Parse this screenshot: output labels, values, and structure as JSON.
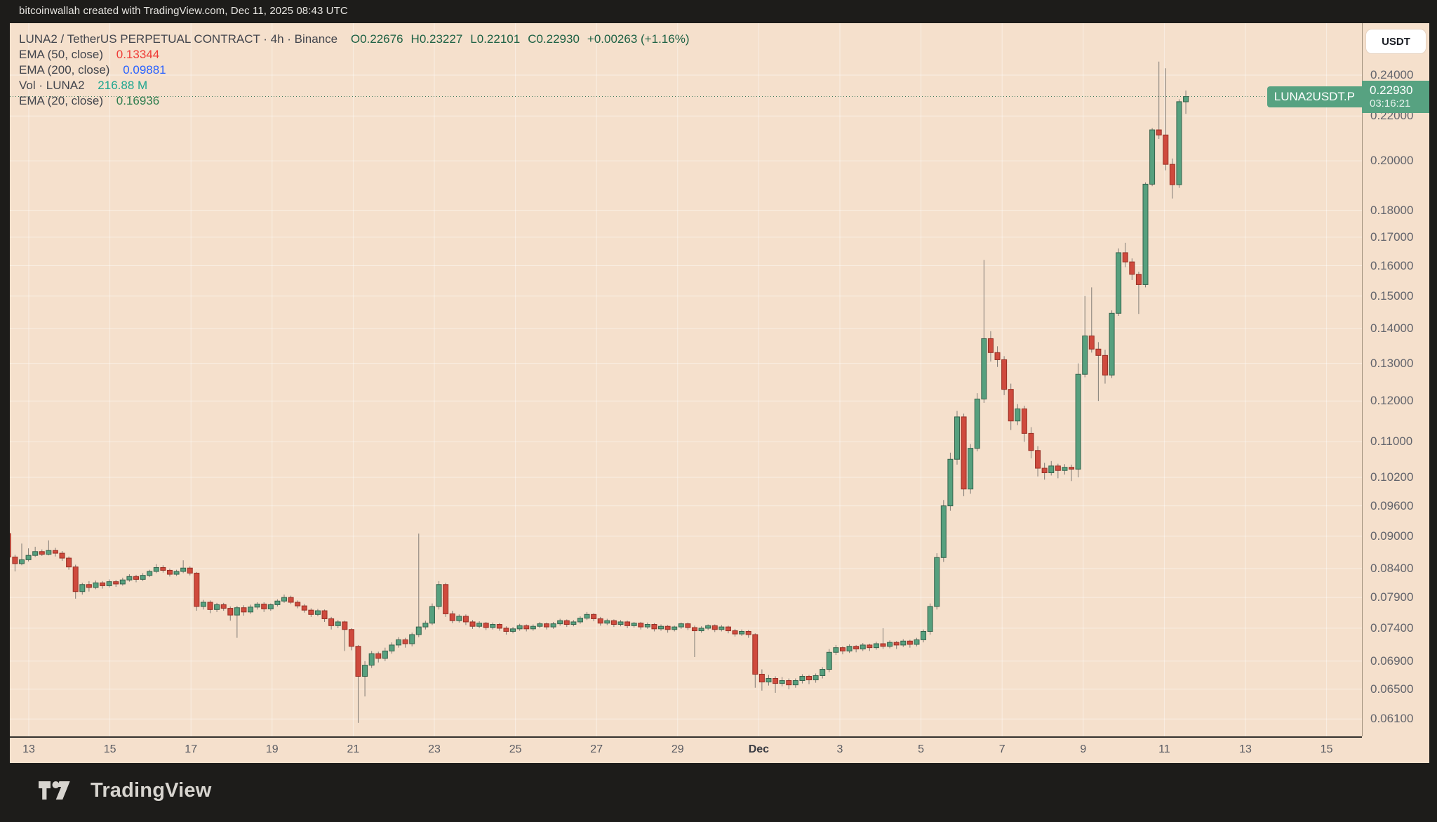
{
  "attribution": "bitcoinwallah created with TradingView.com, Dec 11, 2025 08:43 UTC",
  "brand": {
    "name": "TradingView"
  },
  "currency_button": "USDT",
  "legend": {
    "title": "LUNA2 / TetherUS PERPETUAL CONTRACT · 4h · Binance",
    "ohlc": {
      "open": "O0.22676",
      "high": "H0.23227",
      "low": "L0.22101",
      "close": "C0.22930",
      "change": "+0.00263 (+1.16%)"
    },
    "indicators": [
      {
        "label": "EMA (50, close)",
        "value": "0.13344",
        "color": "#ef3b36"
      },
      {
        "label": "EMA (200, close)",
        "value": "0.09881",
        "color": "#2962ff"
      },
      {
        "label": "Vol · LUNA2",
        "value": "216.88 M",
        "color": "#1ea58f"
      },
      {
        "label": "EMA (20, close)",
        "value": "0.16936",
        "color": "#2e7d4e"
      }
    ]
  },
  "price_badge": {
    "symbol": "LUNA2USDT.P",
    "price": "0.22930",
    "countdown": "03:16:21",
    "color": "#57a281"
  },
  "price_axis": {
    "ticks": [
      {
        "label": "0.24000",
        "value": 0.24
      },
      {
        "label": "0.22000",
        "value": 0.22
      },
      {
        "label": "0.20000",
        "value": 0.2
      },
      {
        "label": "0.18000",
        "value": 0.18
      },
      {
        "label": "0.17000",
        "value": 0.17
      },
      {
        "label": "0.16000",
        "value": 0.16
      },
      {
        "label": "0.15000",
        "value": 0.15
      },
      {
        "label": "0.14000",
        "value": 0.14
      },
      {
        "label": "0.13000",
        "value": 0.13
      },
      {
        "label": "0.12000",
        "value": 0.12
      },
      {
        "label": "0.11000",
        "value": 0.11
      },
      {
        "label": "0.10200",
        "value": 0.102
      },
      {
        "label": "0.09600",
        "value": 0.096
      },
      {
        "label": "0.09000",
        "value": 0.09
      },
      {
        "label": "0.08400",
        "value": 0.084
      },
      {
        "label": "0.07900",
        "value": 0.079
      },
      {
        "label": "0.07400",
        "value": 0.074
      },
      {
        "label": "0.06900",
        "value": 0.069
      },
      {
        "label": "0.06500",
        "value": 0.065
      },
      {
        "label": "0.06100",
        "value": 0.061
      }
    ]
  },
  "time_axis": {
    "ticks": [
      {
        "label": "13",
        "day": 0,
        "bold": false
      },
      {
        "label": "15",
        "day": 2,
        "bold": false
      },
      {
        "label": "17",
        "day": 4,
        "bold": false
      },
      {
        "label": "19",
        "day": 6,
        "bold": false
      },
      {
        "label": "21",
        "day": 8,
        "bold": false
      },
      {
        "label": "23",
        "day": 10,
        "bold": false
      },
      {
        "label": "25",
        "day": 12,
        "bold": false
      },
      {
        "label": "27",
        "day": 14,
        "bold": false
      },
      {
        "label": "29",
        "day": 16,
        "bold": false
      },
      {
        "label": "Dec",
        "day": 18,
        "bold": true
      },
      {
        "label": "3",
        "day": 20,
        "bold": false
      },
      {
        "label": "5",
        "day": 22,
        "bold": false
      },
      {
        "label": "7",
        "day": 24,
        "bold": false
      },
      {
        "label": "9",
        "day": 26,
        "bold": false
      },
      {
        "label": "11",
        "day": 28,
        "bold": false
      },
      {
        "label": "13",
        "day": 30,
        "bold": false
      },
      {
        "label": "15",
        "day": 32,
        "bold": false
      }
    ]
  },
  "chart_data": {
    "type": "candlestick",
    "title": "LUNA2 / TetherUS PERPETUAL CONTRACT",
    "exchange": "Binance",
    "interval": "4h",
    "scale": "logarithmic",
    "grid": true,
    "x_range": [
      "Nov 12 12:00",
      "Dec 11 08:00 UTC"
    ],
    "ylim": [
      0.0595,
      0.248
    ],
    "current": {
      "open": 0.22676,
      "high": 0.23227,
      "low": 0.22101,
      "close": 0.2293,
      "change": 0.00263,
      "change_pct": 1.16,
      "countdown": "03:16:21"
    },
    "indicators": {
      "ema20": 0.16936,
      "ema50": 0.13344,
      "ema200": 0.09881,
      "volume": "216.88 M"
    },
    "colors": {
      "up": "#56a07e",
      "up_border": "#35634c",
      "down": "#cf4a3d",
      "down_border": "#992f24",
      "wick": "#807b75"
    },
    "candles": [
      [
        0.0905,
        0.0907,
        0.0856,
        0.0861
      ],
      [
        0.0861,
        0.0865,
        0.0835,
        0.0849
      ],
      [
        0.0849,
        0.0886,
        0.0846,
        0.0856
      ],
      [
        0.0856,
        0.0877,
        0.0853,
        0.0864
      ],
      [
        0.0864,
        0.088,
        0.0861,
        0.0871
      ],
      [
        0.0871,
        0.0875,
        0.0863,
        0.0866
      ],
      [
        0.0866,
        0.0892,
        0.0864,
        0.0873
      ],
      [
        0.0873,
        0.0878,
        0.0862,
        0.0868
      ],
      [
        0.0868,
        0.0872,
        0.0854,
        0.0859
      ],
      [
        0.0859,
        0.0862,
        0.0838,
        0.0843
      ],
      [
        0.0843,
        0.0847,
        0.0788,
        0.08
      ],
      [
        0.08,
        0.0815,
        0.0795,
        0.0812
      ],
      [
        0.0812,
        0.0818,
        0.08,
        0.0807
      ],
      [
        0.0807,
        0.0819,
        0.0804,
        0.0815
      ],
      [
        0.0815,
        0.0818,
        0.0805,
        0.081
      ],
      [
        0.081,
        0.0821,
        0.0807,
        0.0817
      ],
      [
        0.0817,
        0.082,
        0.0808,
        0.0813
      ],
      [
        0.0813,
        0.0824,
        0.081,
        0.082
      ],
      [
        0.082,
        0.083,
        0.0817,
        0.0826
      ],
      [
        0.0826,
        0.0829,
        0.0816,
        0.0821
      ],
      [
        0.0821,
        0.0832,
        0.0818,
        0.0828
      ],
      [
        0.0828,
        0.0838,
        0.0825,
        0.0835
      ],
      [
        0.0835,
        0.0848,
        0.0832,
        0.0842
      ],
      [
        0.0842,
        0.0846,
        0.0833,
        0.0837
      ],
      [
        0.0837,
        0.084,
        0.0826,
        0.083
      ],
      [
        0.083,
        0.0838,
        0.0827,
        0.0835
      ],
      [
        0.0835,
        0.0855,
        0.0832,
        0.0841
      ],
      [
        0.0841,
        0.0844,
        0.0828,
        0.0832
      ],
      [
        0.0832,
        0.0834,
        0.0768,
        0.0775
      ],
      [
        0.0775,
        0.0786,
        0.077,
        0.0782
      ],
      [
        0.0782,
        0.0785,
        0.0764,
        0.077
      ],
      [
        0.077,
        0.0781,
        0.0766,
        0.0778
      ],
      [
        0.0778,
        0.0781,
        0.0768,
        0.0772
      ],
      [
        0.0772,
        0.0775,
        0.0752,
        0.0761
      ],
      [
        0.0761,
        0.0776,
        0.0725,
        0.0773
      ],
      [
        0.0773,
        0.0777,
        0.076,
        0.0766
      ],
      [
        0.0766,
        0.0778,
        0.0763,
        0.0774
      ],
      [
        0.0774,
        0.0782,
        0.077,
        0.0779
      ],
      [
        0.0779,
        0.0782,
        0.0766,
        0.0771
      ],
      [
        0.0771,
        0.078,
        0.0768,
        0.0778
      ],
      [
        0.0778,
        0.0787,
        0.0775,
        0.0784
      ],
      [
        0.0784,
        0.0795,
        0.0781,
        0.079
      ],
      [
        0.079,
        0.0793,
        0.0779,
        0.0782
      ],
      [
        0.0782,
        0.0785,
        0.0772,
        0.0776
      ],
      [
        0.0776,
        0.0779,
        0.0765,
        0.0769
      ],
      [
        0.0769,
        0.0772,
        0.0758,
        0.0762
      ],
      [
        0.0762,
        0.0771,
        0.0759,
        0.0768
      ],
      [
        0.0768,
        0.077,
        0.075,
        0.0755
      ],
      [
        0.0755,
        0.0758,
        0.0738,
        0.0744
      ],
      [
        0.0744,
        0.0753,
        0.074,
        0.075
      ],
      [
        0.075,
        0.0752,
        0.0705,
        0.0738
      ],
      [
        0.0738,
        0.074,
        0.0706,
        0.0712
      ],
      [
        0.0712,
        0.0714,
        0.0605,
        0.0668
      ],
      [
        0.0668,
        0.069,
        0.064,
        0.0684
      ],
      [
        0.0684,
        0.0705,
        0.068,
        0.0701
      ],
      [
        0.0701,
        0.0704,
        0.0688,
        0.0694
      ],
      [
        0.0694,
        0.071,
        0.069,
        0.0705
      ],
      [
        0.0705,
        0.0718,
        0.0701,
        0.0714
      ],
      [
        0.0714,
        0.0726,
        0.071,
        0.0722
      ],
      [
        0.0722,
        0.0725,
        0.071,
        0.0716
      ],
      [
        0.0716,
        0.0733,
        0.0712,
        0.073
      ],
      [
        0.073,
        0.0905,
        0.0726,
        0.0742
      ],
      [
        0.0742,
        0.0752,
        0.0738,
        0.0748
      ],
      [
        0.0748,
        0.078,
        0.0745,
        0.0775
      ],
      [
        0.0775,
        0.0818,
        0.077,
        0.0812
      ],
      [
        0.0812,
        0.0815,
        0.0758,
        0.0763
      ],
      [
        0.0763,
        0.0768,
        0.0748,
        0.0752
      ],
      [
        0.0752,
        0.0762,
        0.0749,
        0.0759
      ],
      [
        0.0759,
        0.0762,
        0.0745,
        0.075
      ],
      [
        0.075,
        0.0753,
        0.0739,
        0.0743
      ],
      [
        0.0743,
        0.0751,
        0.074,
        0.0748
      ],
      [
        0.0748,
        0.075,
        0.0737,
        0.0741
      ],
      [
        0.0741,
        0.0749,
        0.0738,
        0.0746
      ],
      [
        0.0746,
        0.0748,
        0.0736,
        0.074
      ],
      [
        0.074,
        0.0743,
        0.073,
        0.0735
      ],
      [
        0.0735,
        0.0742,
        0.0732,
        0.0739
      ],
      [
        0.0739,
        0.0747,
        0.0736,
        0.0744
      ],
      [
        0.0744,
        0.0746,
        0.0735,
        0.0739
      ],
      [
        0.0739,
        0.0746,
        0.0736,
        0.0743
      ],
      [
        0.0743,
        0.075,
        0.074,
        0.0747
      ],
      [
        0.0747,
        0.0749,
        0.0738,
        0.0742
      ],
      [
        0.0742,
        0.075,
        0.0739,
        0.0747
      ],
      [
        0.0747,
        0.0755,
        0.0744,
        0.0752
      ],
      [
        0.0752,
        0.0754,
        0.0742,
        0.0746
      ],
      [
        0.0746,
        0.0753,
        0.0743,
        0.075
      ],
      [
        0.075,
        0.0759,
        0.0747,
        0.0756
      ],
      [
        0.0756,
        0.0766,
        0.0753,
        0.0762
      ],
      [
        0.0762,
        0.0764,
        0.0751,
        0.0755
      ],
      [
        0.0755,
        0.0758,
        0.0744,
        0.0748
      ],
      [
        0.0748,
        0.0755,
        0.0745,
        0.0752
      ],
      [
        0.0752,
        0.0754,
        0.0742,
        0.0746
      ],
      [
        0.0746,
        0.0753,
        0.0743,
        0.075
      ],
      [
        0.075,
        0.0752,
        0.074,
        0.0744
      ],
      [
        0.0744,
        0.075,
        0.0741,
        0.0748
      ],
      [
        0.0748,
        0.075,
        0.0738,
        0.0742
      ],
      [
        0.0742,
        0.0749,
        0.0739,
        0.0746
      ],
      [
        0.0746,
        0.0748,
        0.0735,
        0.0739
      ],
      [
        0.0739,
        0.0746,
        0.0736,
        0.0743
      ],
      [
        0.0743,
        0.0745,
        0.0733,
        0.0738
      ],
      [
        0.0738,
        0.0744,
        0.0735,
        0.0742
      ],
      [
        0.0742,
        0.0749,
        0.0739,
        0.0747
      ],
      [
        0.0747,
        0.0749,
        0.0737,
        0.0741
      ],
      [
        0.0741,
        0.0744,
        0.0696,
        0.0736
      ],
      [
        0.0736,
        0.0743,
        0.0733,
        0.074
      ],
      [
        0.074,
        0.0746,
        0.0737,
        0.0744
      ],
      [
        0.0744,
        0.0746,
        0.0734,
        0.0738
      ],
      [
        0.0738,
        0.0745,
        0.0735,
        0.0742
      ],
      [
        0.0742,
        0.0744,
        0.0732,
        0.0736
      ],
      [
        0.0736,
        0.0739,
        0.0727,
        0.0731
      ],
      [
        0.0731,
        0.0738,
        0.0728,
        0.0735
      ],
      [
        0.0735,
        0.0737,
        0.0725,
        0.073
      ],
      [
        0.073,
        0.0732,
        0.0652,
        0.0671
      ],
      [
        0.0671,
        0.0678,
        0.0648,
        0.066
      ],
      [
        0.066,
        0.067,
        0.0655,
        0.0665
      ],
      [
        0.0665,
        0.0668,
        0.0645,
        0.0658
      ],
      [
        0.0658,
        0.0667,
        0.0654,
        0.0662
      ],
      [
        0.0662,
        0.0665,
        0.065,
        0.0656
      ],
      [
        0.0656,
        0.0665,
        0.0652,
        0.0662
      ],
      [
        0.0662,
        0.0671,
        0.0658,
        0.0668
      ],
      [
        0.0668,
        0.067,
        0.0657,
        0.0663
      ],
      [
        0.0663,
        0.0672,
        0.0659,
        0.0669
      ],
      [
        0.0669,
        0.0681,
        0.0665,
        0.0678
      ],
      [
        0.0678,
        0.0708,
        0.0674,
        0.0703
      ],
      [
        0.0703,
        0.0714,
        0.0699,
        0.071
      ],
      [
        0.071,
        0.0712,
        0.07,
        0.0705
      ],
      [
        0.0705,
        0.0715,
        0.0702,
        0.0712
      ],
      [
        0.0712,
        0.0714,
        0.0703,
        0.0708
      ],
      [
        0.0708,
        0.0717,
        0.0705,
        0.0714
      ],
      [
        0.0714,
        0.0716,
        0.0705,
        0.071
      ],
      [
        0.071,
        0.0719,
        0.0707,
        0.0716
      ],
      [
        0.0716,
        0.074,
        0.0708,
        0.0712
      ],
      [
        0.0712,
        0.0721,
        0.0709,
        0.0718
      ],
      [
        0.0718,
        0.072,
        0.0708,
        0.0714
      ],
      [
        0.0714,
        0.0723,
        0.0711,
        0.072
      ],
      [
        0.072,
        0.0722,
        0.071,
        0.0715
      ],
      [
        0.0715,
        0.0725,
        0.0712,
        0.0722
      ],
      [
        0.0722,
        0.0738,
        0.0718,
        0.0735
      ],
      [
        0.0735,
        0.078,
        0.073,
        0.0775
      ],
      [
        0.0775,
        0.0868,
        0.077,
        0.086
      ],
      [
        0.086,
        0.0972,
        0.0852,
        0.096
      ],
      [
        0.096,
        0.1075,
        0.095,
        0.106
      ],
      [
        0.106,
        0.1175,
        0.1048,
        0.116
      ],
      [
        0.116,
        0.1168,
        0.098,
        0.0995
      ],
      [
        0.0995,
        0.1095,
        0.0985,
        0.1085
      ],
      [
        0.1085,
        0.122,
        0.1078,
        0.1205
      ],
      [
        0.1205,
        0.162,
        0.1195,
        0.137
      ],
      [
        0.137,
        0.1392,
        0.1305,
        0.133
      ],
      [
        0.133,
        0.1348,
        0.129,
        0.131
      ],
      [
        0.131,
        0.132,
        0.1215,
        0.123
      ],
      [
        0.123,
        0.1245,
        0.1128,
        0.115
      ],
      [
        0.115,
        0.1192,
        0.114,
        0.118
      ],
      [
        0.118,
        0.1188,
        0.11,
        0.112
      ],
      [
        0.112,
        0.1135,
        0.1062,
        0.108
      ],
      [
        0.108,
        0.109,
        0.1022,
        0.104
      ],
      [
        0.104,
        0.1052,
        0.1015,
        0.103
      ],
      [
        0.103,
        0.1056,
        0.1024,
        0.1045
      ],
      [
        0.1045,
        0.105,
        0.1018,
        0.1035
      ],
      [
        0.1035,
        0.1049,
        0.1026,
        0.1042
      ],
      [
        0.1042,
        0.1048,
        0.1012,
        0.1038
      ],
      [
        0.1038,
        0.13,
        0.102,
        0.127
      ],
      [
        0.127,
        0.15,
        0.1262,
        0.1378
      ],
      [
        0.1378,
        0.1528,
        0.133,
        0.134
      ],
      [
        0.134,
        0.136,
        0.12,
        0.1322
      ],
      [
        0.1322,
        0.1338,
        0.1245,
        0.1268
      ],
      [
        0.1268,
        0.1455,
        0.126,
        0.1446
      ],
      [
        0.1446,
        0.166,
        0.1438,
        0.1645
      ],
      [
        0.1645,
        0.168,
        0.1595,
        0.1613
      ],
      [
        0.1613,
        0.1625,
        0.1552,
        0.1571
      ],
      [
        0.1571,
        0.158,
        0.1444,
        0.1537
      ],
      [
        0.1537,
        0.191,
        0.1528,
        0.1903
      ],
      [
        0.1903,
        0.2145,
        0.1895,
        0.2136
      ],
      [
        0.2136,
        0.247,
        0.2095,
        0.2113
      ],
      [
        0.2113,
        0.2435,
        0.196,
        0.1985
      ],
      [
        0.1985,
        0.201,
        0.1846,
        0.1901
      ],
      [
        0.1901,
        0.228,
        0.1888,
        0.2268
      ],
      [
        0.22676,
        0.23227,
        0.22101,
        0.2293
      ]
    ]
  },
  "colors": {
    "chrome_bg": "#1d1c1a",
    "panel_bg": "#f5e0cc",
    "grid": "rgba(255,255,255,0.45)",
    "axis_text": "#62646c",
    "ohlc_up_text": "#1d6144",
    "badge_green": "#57a281",
    "dotted_price_line": "#3f7a5e"
  }
}
